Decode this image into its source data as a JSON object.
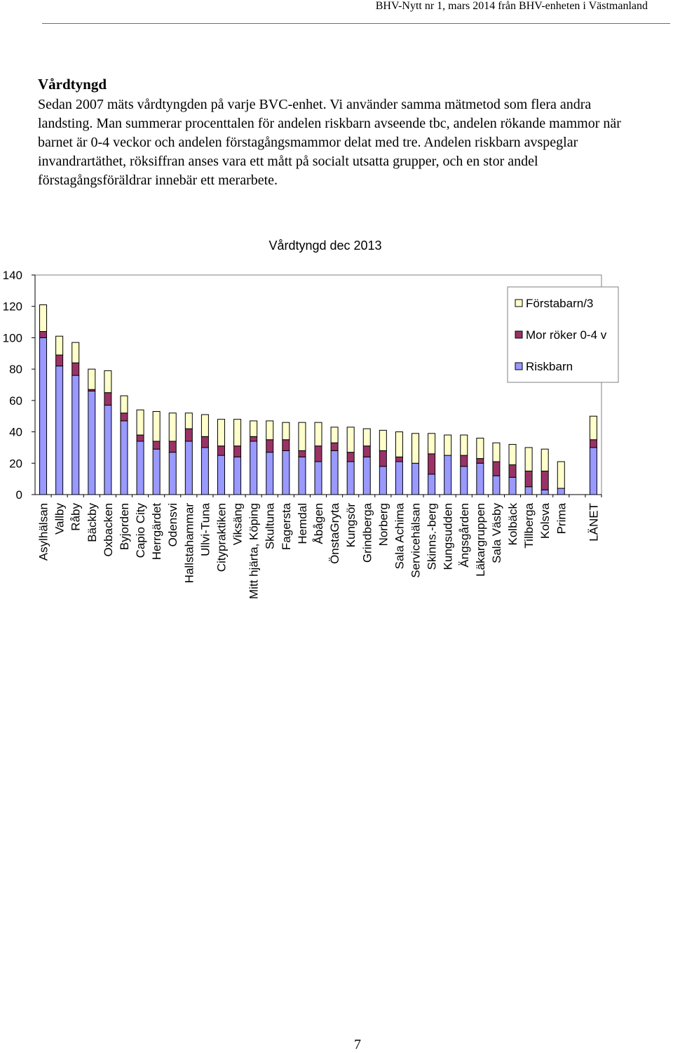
{
  "header": {
    "text": "BHV-Nytt nr 1, mars 2014  från BHV-enheten i Västmanland"
  },
  "section": {
    "title": "Vårdtyngd",
    "body": "Sedan 2007 mäts vårdtyngden på varje BVC-enhet. Vi använder samma mätmetod som flera andra landsting. Man summerar procenttalen för andelen riskbarn avseende tbc, andelen rökande mammor när barnet är 0-4 veckor och andelen förstagångsmammor delat med tre. Andelen riskbarn avspeglar invandrartäthet, röksiffran anses vara ett mått på socialt utsatta grupper, och en stor andel förstagångsföräldrar innebär ett merarbete."
  },
  "chart_data": {
    "type": "bar",
    "stacked": true,
    "title": "Vårdtyngd dec 2013",
    "xlabel": "",
    "ylabel": "",
    "ylim": [
      0,
      140
    ],
    "yticks": [
      0,
      20,
      40,
      60,
      80,
      100,
      120,
      140
    ],
    "legend_position": "top-right",
    "categories": [
      "Asylhälsan",
      "Vallby",
      "Råby",
      "Bäckby",
      "Oxbacken",
      "Byjorden",
      "Capio City",
      "Herrgärdet",
      "Odensvi",
      "Hallstahammar",
      "Ullvi-Tuna",
      "Citypraktiken",
      "Viksäng",
      "Mitt hjärta, Köping",
      "Skultuna",
      "Fagersta",
      "Hemdal",
      "Åbågen",
      "ÖnstaGryta",
      "Kungsör",
      "Grindberga",
      "Norberg",
      "Sala Achima",
      "Servicehälsan",
      "Skinns.-berg",
      "Kungsudden",
      "Ängsgården",
      "Läkargruppen",
      "Sala Väsby",
      "Kolbäck",
      "Tillberga",
      "Kolsva",
      "Prima",
      "",
      "LÄNET"
    ],
    "series": [
      {
        "name": "Riskbarn",
        "color": "#9999ff",
        "values": [
          100,
          82,
          76,
          66,
          57,
          47,
          34,
          29,
          27,
          34,
          30,
          25,
          24,
          34,
          27,
          28,
          24,
          21,
          28,
          21,
          24,
          18,
          21,
          20,
          13,
          25,
          18,
          20,
          12,
          11,
          5,
          3,
          4,
          null,
          30
        ]
      },
      {
        "name": "Mor röker 0-4 v",
        "color": "#993366",
        "values": [
          4,
          7,
          8,
          1,
          8,
          5,
          4,
          5,
          7,
          8,
          7,
          6,
          7,
          3,
          8,
          7,
          4,
          10,
          5,
          6,
          7,
          10,
          3,
          0,
          13,
          0,
          7,
          3,
          9,
          8,
          10,
          12,
          0,
          null,
          5
        ]
      },
      {
        "name": "Förstabarn/3",
        "color": "#ffffcc",
        "values": [
          17,
          12,
          13,
          13,
          14,
          11,
          16,
          19,
          18,
          10,
          14,
          17,
          17,
          10,
          12,
          11,
          18,
          15,
          10,
          16,
          11,
          13,
          16,
          19,
          13,
          13,
          13,
          13,
          12,
          13,
          15,
          14,
          17,
          null,
          15
        ]
      }
    ]
  },
  "page": {
    "number": "7"
  }
}
